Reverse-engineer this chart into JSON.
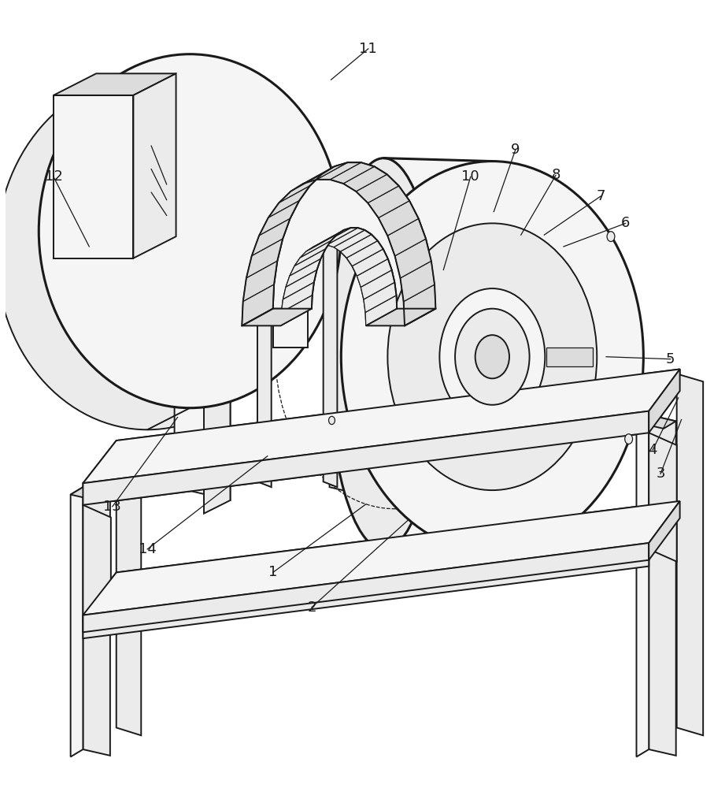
{
  "bg": "#ffffff",
  "lc": "#1a1a1a",
  "lw": 1.4,
  "lw_thick": 2.2,
  "lw_thin": 0.9,
  "label_fs": 13,
  "label_color": "#1a1a1a",
  "face_light": "#f5f5f5",
  "face_mid": "#ebebeb",
  "face_dark": "#dcdcdc",
  "face_white": "#fafafa"
}
